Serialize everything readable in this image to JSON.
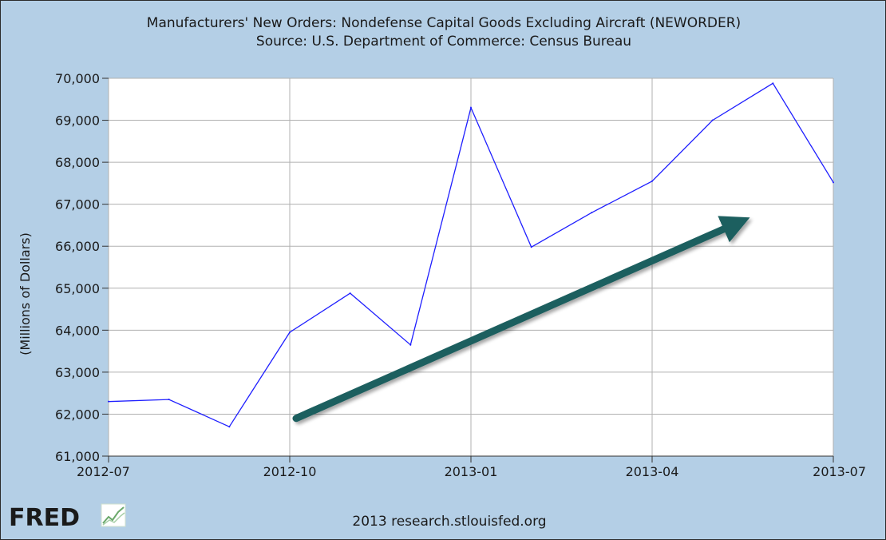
{
  "chart_data": {
    "type": "line",
    "title": "Manufacturers' New Orders: Nondefense Capital Goods Excluding Aircraft (NEWORDER)",
    "subtitle": "Source: U.S. Department of Commerce: Census Bureau",
    "xlabel": "",
    "ylabel": "(Millions of Dollars)",
    "x": [
      "2012-07",
      "2012-08",
      "2012-09",
      "2012-10",
      "2012-11",
      "2012-12",
      "2013-01",
      "2013-02",
      "2013-03",
      "2013-04",
      "2013-05",
      "2013-06",
      "2013-07"
    ],
    "series": [
      {
        "values": [
          62300,
          62350,
          61700,
          63950,
          64880,
          63650,
          69300,
          65980,
          66800,
          67550,
          69000,
          69880,
          67520
        ]
      }
    ],
    "x_ticks": [
      "2012-07",
      "2012-10",
      "2013-01",
      "2013-04",
      "2013-07"
    ],
    "y_ticks": [
      "61,000",
      "62,000",
      "63,000",
      "64,000",
      "65,000",
      "66,000",
      "67,000",
      "68,000",
      "69,000",
      "70,000"
    ],
    "ylim": [
      61000,
      70000
    ],
    "grid": true,
    "line_color": "#1f1fff",
    "annotations": [
      {
        "type": "arrow",
        "from": {
          "x": "2012-10",
          "y": 61900
        },
        "to": {
          "x": "2013-05",
          "y": 66750
        },
        "color": "#1f5e5e"
      }
    ]
  },
  "footer": {
    "logo": "FRED",
    "credit": "2013 research.stlouisfed.org"
  },
  "colors": {
    "frame_bg": "#b4cfe6",
    "plot_bg": "#ffffff",
    "grid": "#b0b0b0",
    "arrow": "#1f5e5e"
  }
}
